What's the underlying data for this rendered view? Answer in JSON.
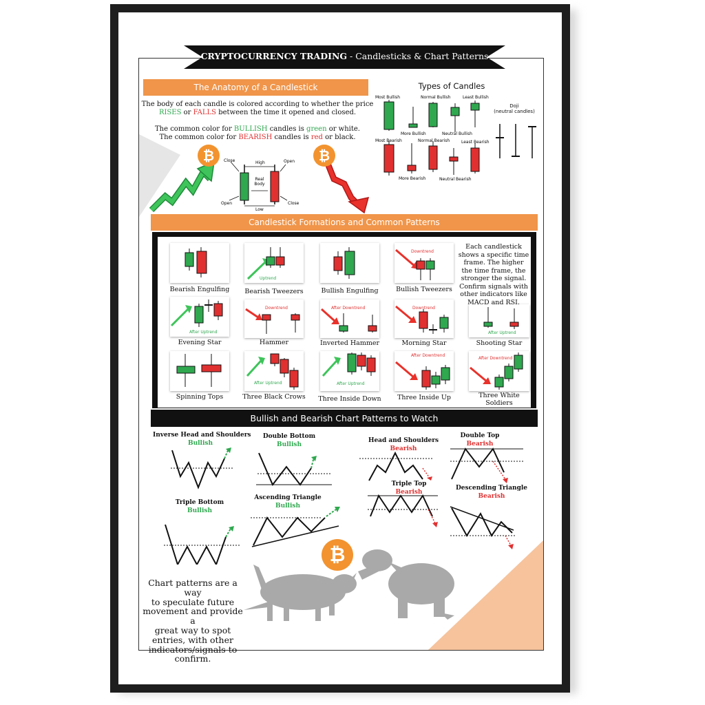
{
  "banner": {
    "title_bold": "CRYPTOCURRENCY TRADING",
    "title_rest": " - Candlesticks & Chart Patterns"
  },
  "anatomy": {
    "header": "The Anatomy of a Candlestick",
    "line1": "The body of each candle is colored according to whether the price",
    "line2_a": "RISES",
    "line2_b": " or ",
    "line2_c": "FALLS",
    "line2_d": " between the time it opened and closed.",
    "line3_a": "The common color for ",
    "line3_b": "BULLISH",
    "line3_c": " candles is ",
    "line3_d": "green",
    "line3_e": " or white.",
    "line4_a": "The common color for ",
    "line4_b": "BEARISH",
    "line4_c": " candles is ",
    "line4_d": "red",
    "line4_e": " or black.",
    "labels": {
      "close": "Close",
      "high": "High",
      "open": "Open",
      "real_body_1": "Real",
      "real_body_2": "Body",
      "open2": "Open",
      "low": "Low",
      "close2": "Close"
    },
    "bitcoin_symbol": "₿"
  },
  "types": {
    "title": "Types of Candles",
    "most_bullish": "Most Bullish",
    "normal_bullish": "Normal Bullish",
    "least_bullish": "Least Bullish",
    "more_bullish": "More Bullish",
    "neutral_bullish": "Neutral Bullish",
    "most_bearish": "Most Bearish",
    "normal_bearish": "Normal Bearish",
    "least_bearish": "Least Bearish",
    "more_bearish": "More Bearish",
    "neutral_bearish": "Neutral Bearish",
    "doji_1": "Doji",
    "doji_2": "(neutral candles)"
  },
  "formations": {
    "header": "Candlestick Formations and Common Patterns",
    "patterns": [
      "Bearish Engulfing",
      "Bearish Tweezers",
      "Bullish Engulfing",
      "Bullish Tweezers",
      "Evening Star",
      "Hammer",
      "Inverted Hammer",
      "Morning Star",
      "Shooting Star",
      "Spinning Tops",
      "Three Black Crows",
      "Three Inside Down",
      "Three Inside Up",
      "Three White",
      "Soldiers"
    ],
    "mini": {
      "uptrend": "Uptrend",
      "downtrend": "Downtrend",
      "after_uptrend": "After Uptrend",
      "after_downtrend": "After Downtrend"
    },
    "note": [
      "Each candlestick",
      "shows a specific time",
      "frame.  The higher",
      "the time frame, the",
      "stronger the signal.",
      "Confirm signals with",
      "other indicators like",
      "MACD and RSI."
    ]
  },
  "chart_patterns": {
    "header": "Bullish and Bearish Chart Patterns to Watch",
    "items": [
      {
        "name": "Inverse Head and Shoulders",
        "signal": "Bullish"
      },
      {
        "name": "Double Bottom",
        "signal": "Bullish"
      },
      {
        "name": "Head and Shoulders",
        "signal": "Bearish"
      },
      {
        "name": "Double Top",
        "signal": "Bearish"
      },
      {
        "name": "Triple Top",
        "signal": "Bearish"
      },
      {
        "name": "Triple Bottom",
        "signal": "Bullish"
      },
      {
        "name": "Ascending Triangle",
        "signal": "Bullish"
      },
      {
        "name": "Descending Triangle",
        "signal": "Bearish"
      }
    ],
    "footer": [
      "Chart patterns are a way",
      "to speculate future",
      "movement and provide a",
      "great way to spot",
      "entries, with other",
      "indicators/signals to",
      "confirm."
    ]
  },
  "colors": {
    "green": "#2fa84f",
    "red": "#e03030",
    "orange": "#f0954a",
    "bitcoin": "#f2932f",
    "bull_bear": "#a9a9a9"
  }
}
